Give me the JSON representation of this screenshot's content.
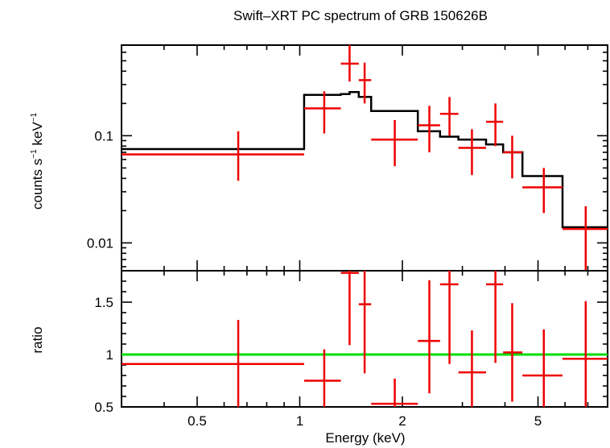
{
  "title": "Swift–XRT PC spectrum of GRB 150626B",
  "colors": {
    "data": "#ee0000",
    "model": "#000000",
    "unity": "#00dd00",
    "axis": "#000000"
  },
  "chart_data": [
    {
      "type": "scatter",
      "panel": "spectrum",
      "xscale": "log",
      "yscale": "log",
      "xlim": [
        0.3,
        8.0
      ],
      "ylim": [
        0.0055,
        0.7
      ],
      "xlabel": "",
      "ylabel_main": "counts s",
      "ylabel_sup1": "−1",
      "ylabel_mid": " keV",
      "ylabel_sup2": "−1",
      "yticks": [
        {
          "v": 0.1,
          "label": "0.1"
        },
        {
          "v": 0.01,
          "label": "0.01"
        }
      ],
      "points": [
        {
          "x": 0.66,
          "xlo": 0.3,
          "xhi": 1.03,
          "y": 0.067,
          "ylo": 0.038,
          "yhi": 0.11
        },
        {
          "x": 1.18,
          "xlo": 1.03,
          "xhi": 1.32,
          "y": 0.18,
          "ylo": 0.105,
          "yhi": 0.26
        },
        {
          "x": 1.4,
          "xlo": 1.32,
          "xhi": 1.49,
          "y": 0.47,
          "ylo": 0.32,
          "yhi": 0.7
        },
        {
          "x": 1.55,
          "xlo": 1.49,
          "xhi": 1.62,
          "y": 0.33,
          "ylo": 0.2,
          "yhi": 0.48
        },
        {
          "x": 1.9,
          "xlo": 1.62,
          "xhi": 2.22,
          "y": 0.092,
          "ylo": 0.052,
          "yhi": 0.14
        },
        {
          "x": 2.4,
          "xlo": 2.22,
          "xhi": 2.58,
          "y": 0.125,
          "ylo": 0.07,
          "yhi": 0.19
        },
        {
          "x": 2.75,
          "xlo": 2.58,
          "xhi": 2.92,
          "y": 0.16,
          "ylo": 0.1,
          "yhi": 0.23
        },
        {
          "x": 3.2,
          "xlo": 2.92,
          "xhi": 3.52,
          "y": 0.077,
          "ylo": 0.043,
          "yhi": 0.115
        },
        {
          "x": 3.75,
          "xlo": 3.52,
          "xhi": 3.95,
          "y": 0.135,
          "ylo": 0.08,
          "yhi": 0.2
        },
        {
          "x": 4.2,
          "xlo": 3.95,
          "xhi": 4.5,
          "y": 0.07,
          "ylo": 0.04,
          "yhi": 0.1
        },
        {
          "x": 5.2,
          "xlo": 4.5,
          "xhi": 5.9,
          "y": 0.033,
          "ylo": 0.019,
          "yhi": 0.05
        },
        {
          "x": 6.9,
          "xlo": 5.9,
          "xhi": 8.0,
          "y": 0.0135,
          "ylo": 0.0055,
          "yhi": 0.022
        }
      ],
      "model_steps": [
        {
          "xlo": 0.3,
          "xhi": 1.03,
          "y": 0.075
        },
        {
          "xlo": 1.03,
          "xhi": 1.32,
          "y": 0.24
        },
        {
          "xlo": 1.32,
          "xhi": 1.4,
          "y": 0.245
        },
        {
          "xlo": 1.4,
          "xhi": 1.49,
          "y": 0.255
        },
        {
          "xlo": 1.49,
          "xhi": 1.62,
          "y": 0.23
        },
        {
          "xlo": 1.62,
          "xhi": 2.22,
          "y": 0.17
        },
        {
          "xlo": 2.22,
          "xhi": 2.58,
          "y": 0.11
        },
        {
          "xlo": 2.58,
          "xhi": 2.92,
          "y": 0.098
        },
        {
          "xlo": 2.92,
          "xhi": 3.52,
          "y": 0.092
        },
        {
          "xlo": 3.52,
          "xhi": 3.95,
          "y": 0.083
        },
        {
          "xlo": 3.95,
          "xhi": 4.5,
          "y": 0.07
        },
        {
          "xlo": 4.5,
          "xhi": 5.9,
          "y": 0.042
        },
        {
          "xlo": 5.9,
          "xhi": 8.0,
          "y": 0.014
        }
      ]
    },
    {
      "type": "scatter",
      "panel": "ratio",
      "xscale": "log",
      "yscale": "linear",
      "xlim": [
        0.3,
        8.0
      ],
      "ylim": [
        0.5,
        1.8
      ],
      "xlabel": "Energy (keV)",
      "ylabel": "ratio",
      "xticks": [
        {
          "v": 0.5,
          "label": "0.5"
        },
        {
          "v": 1,
          "label": "1"
        },
        {
          "v": 2,
          "label": "2"
        },
        {
          "v": 5,
          "label": "5"
        }
      ],
      "yticks": [
        {
          "v": 0.5,
          "label": "0.5"
        },
        {
          "v": 1,
          "label": "1"
        },
        {
          "v": 1.5,
          "label": "1.5"
        }
      ],
      "reference_line": 1.0,
      "points": [
        {
          "x": 0.66,
          "xlo": 0.3,
          "xhi": 1.03,
          "y": 0.91,
          "ylo": 0.5,
          "yhi": 1.33
        },
        {
          "x": 1.18,
          "xlo": 1.03,
          "xhi": 1.32,
          "y": 0.75,
          "ylo": 0.5,
          "yhi": 1.05
        },
        {
          "x": 1.4,
          "xlo": 1.32,
          "xhi": 1.49,
          "y": 1.78,
          "ylo": 1.09,
          "yhi": 1.8
        },
        {
          "x": 1.55,
          "xlo": 1.49,
          "xhi": 1.62,
          "y": 1.48,
          "ylo": 0.82,
          "yhi": 1.8
        },
        {
          "x": 1.9,
          "xlo": 1.62,
          "xhi": 2.22,
          "y": 0.53,
          "ylo": 0.5,
          "yhi": 0.77
        },
        {
          "x": 2.4,
          "xlo": 2.22,
          "xhi": 2.58,
          "y": 1.13,
          "ylo": 0.63,
          "yhi": 1.71
        },
        {
          "x": 2.75,
          "xlo": 2.58,
          "xhi": 2.92,
          "y": 1.67,
          "ylo": 0.91,
          "yhi": 1.8
        },
        {
          "x": 3.2,
          "xlo": 2.92,
          "xhi": 3.52,
          "y": 0.83,
          "ylo": 0.5,
          "yhi": 1.23
        },
        {
          "x": 3.75,
          "xlo": 3.52,
          "xhi": 3.95,
          "y": 1.67,
          "ylo": 0.92,
          "yhi": 1.8
        },
        {
          "x": 4.2,
          "xlo": 3.95,
          "xhi": 4.5,
          "y": 1.02,
          "ylo": 0.55,
          "yhi": 1.49
        },
        {
          "x": 5.2,
          "xlo": 4.5,
          "xhi": 5.9,
          "y": 0.8,
          "ylo": 0.5,
          "yhi": 1.24
        },
        {
          "x": 6.9,
          "xlo": 5.9,
          "xhi": 8.0,
          "y": 0.96,
          "ylo": 0.5,
          "yhi": 1.51
        }
      ]
    }
  ]
}
